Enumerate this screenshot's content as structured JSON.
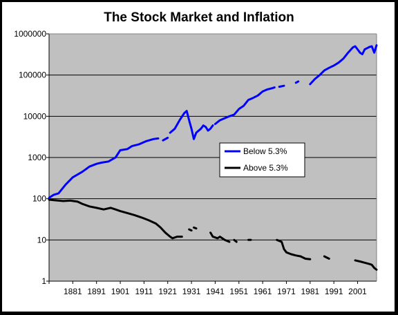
{
  "chart_data": {
    "type": "line",
    "title": "The Stock Market and Inflation",
    "xlabel": "",
    "ylabel": "",
    "y_scale": "log",
    "ylim": [
      1,
      1000000
    ],
    "xlim": [
      1871,
      2009
    ],
    "grid": true,
    "legend_placement": "center-right",
    "background_color": "#c0c0c0",
    "y_ticks": [
      "1",
      "10",
      "100",
      "1000",
      "10000",
      "100000",
      "1000000"
    ],
    "x_ticks": [
      "1881",
      "1891",
      "1901",
      "1911",
      "1921",
      "1931",
      "1941",
      "1951",
      "1961",
      "1971",
      "1981",
      "1991",
      "2001"
    ],
    "series": [
      {
        "name": "Below 5.3%",
        "color": "#0000ff",
        "segments": [
          [
            [
              1871,
              105
            ],
            [
              1873,
              125
            ],
            [
              1875,
              135
            ],
            [
              1878,
              220
            ],
            [
              1881,
              330
            ],
            [
              1885,
              450
            ],
            [
              1888,
              600
            ],
            [
              1891,
              700
            ],
            [
              1893,
              750
            ],
            [
              1896,
              800
            ],
            [
              1899,
              1000
            ],
            [
              1901,
              1500
            ],
            [
              1904,
              1600
            ],
            [
              1906,
              1900
            ],
            [
              1909,
              2100
            ],
            [
              1912,
              2500
            ],
            [
              1915,
              2800
            ],
            [
              1917,
              2900
            ]
          ],
          [
            [
              1919,
              2600
            ],
            [
              1921,
              3000
            ]
          ],
          [
            [
              1922,
              4000
            ],
            [
              1924,
              5000
            ],
            [
              1926,
              8000
            ],
            [
              1928,
              12000
            ],
            [
              1929,
              13500
            ],
            [
              1930,
              8000
            ],
            [
              1931,
              5000
            ],
            [
              1932,
              2800
            ],
            [
              1933,
              4000
            ],
            [
              1935,
              5000
            ],
            [
              1936,
              6000
            ],
            [
              1937,
              5500
            ],
            [
              1938,
              4500
            ],
            [
              1939,
              5000
            ],
            [
              1940,
              6000
            ]
          ],
          [
            [
              1941,
              6500
            ],
            [
              1943,
              8000
            ],
            [
              1945,
              9000
            ],
            [
              1947,
              10000
            ],
            [
              1949,
              11000
            ],
            [
              1951,
              15000
            ],
            [
              1953,
              18000
            ],
            [
              1955,
              25000
            ],
            [
              1957,
              28000
            ],
            [
              1959,
              32000
            ],
            [
              1961,
              40000
            ],
            [
              1963,
              45000
            ],
            [
              1965,
              48000
            ],
            [
              1966,
              50000
            ]
          ],
          [
            [
              1968,
              52000
            ],
            [
              1970,
              55000
            ]
          ],
          [
            [
              1975,
              65000
            ],
            [
              1976,
              70000
            ]
          ],
          [
            [
              1981,
              60000
            ],
            [
              1983,
              80000
            ],
            [
              1985,
              100000
            ],
            [
              1987,
              130000
            ],
            [
              1989,
              150000
            ],
            [
              1991,
              170000
            ],
            [
              1993,
              200000
            ],
            [
              1995,
              250000
            ],
            [
              1997,
              350000
            ],
            [
              1999,
              470000
            ],
            [
              2000,
              500000
            ],
            [
              2001,
              420000
            ],
            [
              2002,
              350000
            ],
            [
              2003,
              320000
            ],
            [
              2004,
              420000
            ],
            [
              2005,
              450000
            ],
            [
              2006,
              480000
            ],
            [
              2007,
              500000
            ],
            [
              2008,
              350000
            ],
            [
              2009,
              530000
            ]
          ]
        ]
      },
      {
        "name": "Above 5.3%",
        "color": "#000000",
        "segments": [
          [
            [
              1871,
              95
            ],
            [
              1873,
              92
            ],
            [
              1875,
              90
            ],
            [
              1877,
              88
            ],
            [
              1880,
              90
            ],
            [
              1883,
              85
            ],
            [
              1885,
              75
            ],
            [
              1888,
              65
            ],
            [
              1891,
              60
            ],
            [
              1894,
              55
            ],
            [
              1897,
              60
            ],
            [
              1899,
              55
            ],
            [
              1901,
              50
            ],
            [
              1904,
              45
            ],
            [
              1907,
              40
            ],
            [
              1910,
              35
            ],
            [
              1913,
              30
            ],
            [
              1916,
              25
            ],
            [
              1918,
              20
            ],
            [
              1920,
              15
            ],
            [
              1922,
              12
            ],
            [
              1923,
              11
            ],
            [
              1925,
              12
            ],
            [
              1927,
              12
            ]
          ],
          [
            [
              1930,
              18
            ],
            [
              1931,
              17
            ]
          ],
          [
            [
              1932,
              20
            ],
            [
              1933,
              19
            ]
          ],
          [
            [
              1939,
              15
            ],
            [
              1940,
              12
            ],
            [
              1942,
              11
            ],
            [
              1943,
              12
            ],
            [
              1945,
              10
            ],
            [
              1947,
              9
            ]
          ],
          [
            [
              1949,
              10
            ],
            [
              1950,
              9
            ]
          ],
          [
            [
              1955,
              10
            ],
            [
              1956,
              10
            ]
          ],
          [
            [
              1967,
              10
            ],
            [
              1969,
              9
            ],
            [
              1970,
              6
            ],
            [
              1971,
              5
            ],
            [
              1973,
              4.5
            ],
            [
              1975,
              4.2
            ],
            [
              1977,
              4
            ],
            [
              1979,
              3.5
            ],
            [
              1981,
              3.4
            ]
          ],
          [
            [
              1987,
              4
            ],
            [
              1989,
              3.5
            ]
          ],
          [
            [
              2000,
              3.2
            ],
            [
              2002,
              3
            ],
            [
              2004,
              2.8
            ],
            [
              2006,
              2.6
            ],
            [
              2007,
              2.5
            ],
            [
              2008,
              2.1
            ],
            [
              2009,
              1.9
            ]
          ]
        ]
      }
    ]
  }
}
